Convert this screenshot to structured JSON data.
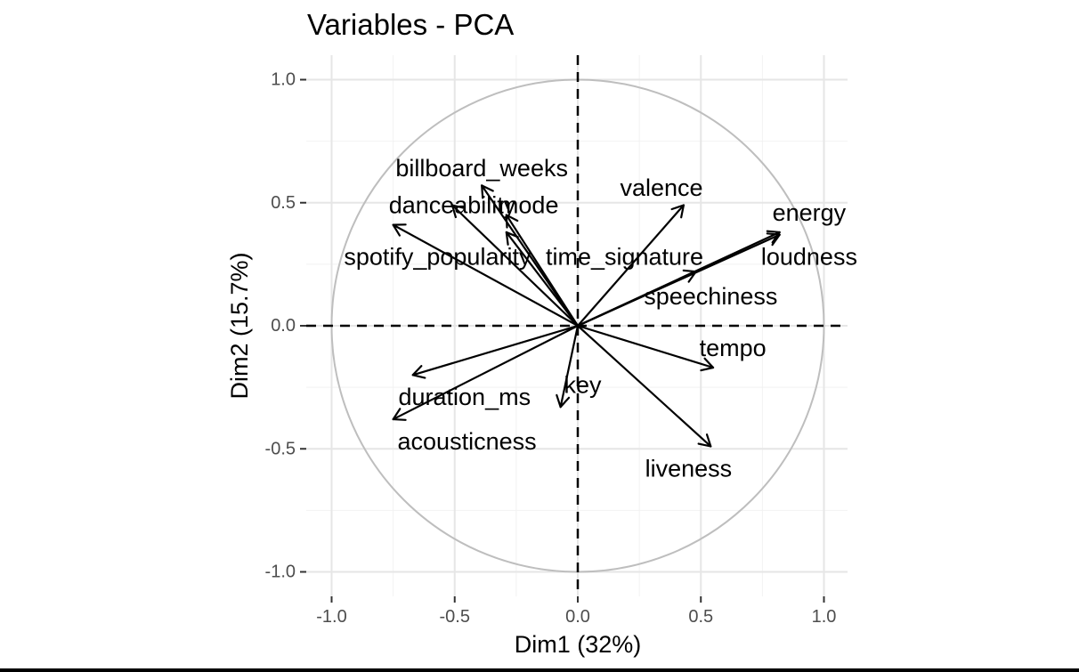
{
  "chart_data": {
    "type": "scatter",
    "title": "Variables - PCA",
    "xlabel": "Dim1 (32%)",
    "ylabel": "Dim2 (15.7%)",
    "xlim": [
      -1.0,
      1.0
    ],
    "ylim": [
      -1.0,
      1.0
    ],
    "x_ticks": [
      -1.0,
      -0.5,
      0.0,
      0.5,
      1.0
    ],
    "y_ticks": [
      -1.0,
      -0.5,
      0.0,
      0.5,
      1.0
    ],
    "x_tick_labels": [
      "-1.0",
      "-0.5",
      "0.0",
      "0.5",
      "1.0"
    ],
    "y_tick_labels": [
      "-1.0",
      "-0.5",
      "0.0",
      "0.5",
      "1.0"
    ],
    "grid": true,
    "unit_circle": true,
    "arrows": [
      {
        "name": "billboard_weeks",
        "x": -0.39,
        "y": 0.57
      },
      {
        "name": "danceability",
        "x": -0.51,
        "y": 0.49
      },
      {
        "name": "mode",
        "x": -0.29,
        "y": 0.45
      },
      {
        "name": "spotify_popularity",
        "x": -0.75,
        "y": 0.41
      },
      {
        "name": "time_signature",
        "x": -0.29,
        "y": 0.38
      },
      {
        "name": "valence",
        "x": 0.43,
        "y": 0.49
      },
      {
        "name": "energy",
        "x": 0.82,
        "y": 0.38
      },
      {
        "name": "loudness",
        "x": 0.82,
        "y": 0.37
      },
      {
        "name": "speechiness",
        "x": 0.48,
        "y": 0.22
      },
      {
        "name": "tempo",
        "x": 0.55,
        "y": -0.17
      },
      {
        "name": "key",
        "x": -0.07,
        "y": -0.33
      },
      {
        "name": "duration_ms",
        "x": -0.67,
        "y": -0.2
      },
      {
        "name": "acousticness",
        "x": -0.75,
        "y": -0.38
      },
      {
        "name": "liveness",
        "x": 0.54,
        "y": -0.49
      }
    ],
    "labels": [
      {
        "text": "billboard_weeks",
        "x": -0.39,
        "y": 0.64
      },
      {
        "text": "danceability",
        "x": -0.51,
        "y": 0.49
      },
      {
        "text": "mode",
        "x": -0.2,
        "y": 0.49
      },
      {
        "text": "spotify_popularity",
        "x": -0.57,
        "y": 0.28
      },
      {
        "text": "time_signature",
        "x": 0.19,
        "y": 0.28
      },
      {
        "text": "valence",
        "x": 0.34,
        "y": 0.56
      },
      {
        "text": "energy",
        "x": 0.94,
        "y": 0.46
      },
      {
        "text": "loudness",
        "x": 0.94,
        "y": 0.28
      },
      {
        "text": "speechiness",
        "x": 0.54,
        "y": 0.12
      },
      {
        "text": "tempo",
        "x": 0.63,
        "y": -0.09
      },
      {
        "text": "key",
        "x": 0.02,
        "y": -0.24
      },
      {
        "text": "duration_ms",
        "x": -0.46,
        "y": -0.29
      },
      {
        "text": "acousticness",
        "x": -0.45,
        "y": -0.47
      },
      {
        "text": "liveness",
        "x": 0.45,
        "y": -0.58
      }
    ]
  }
}
